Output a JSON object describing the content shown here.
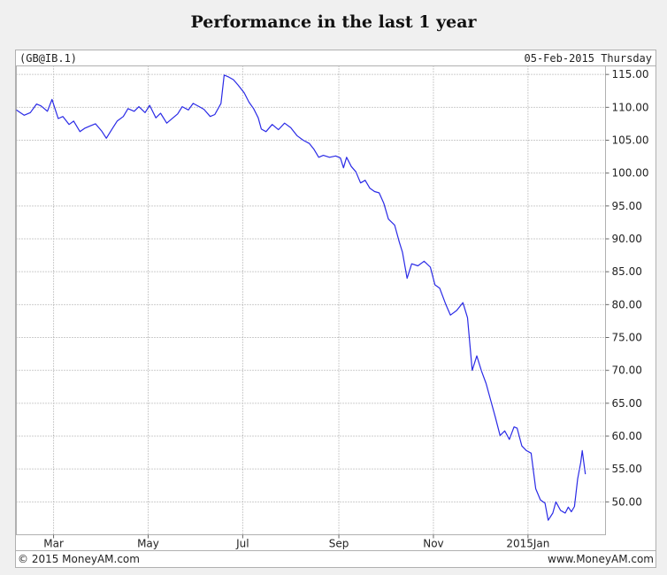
{
  "header": {
    "title": "Performance in the last 1 year"
  },
  "chart_data": {
    "type": "line",
    "title": "Performance in the last 1 year",
    "symbol": "(GB@IB.1)",
    "date_label": "05-Feb-2015 Thursday",
    "copyright": "© 2015 MoneyAM.com",
    "site": "www.MoneyAM.com",
    "xlabel": "",
    "ylabel": "",
    "ylim": [
      45,
      116.3
    ],
    "grid": true,
    "line_color": "#2a2ae6",
    "y_ticks": [
      "115.00",
      "110.00",
      "105.00",
      "100.00",
      "95.00",
      "90.00",
      "85.00",
      "80.00",
      "75.00",
      "70.00",
      "65.00",
      "60.00",
      "55.00",
      "50.00"
    ],
    "x_ticks": [
      {
        "label": "Mar",
        "date": "2014-03-01"
      },
      {
        "label": "May",
        "date": "2014-05-01"
      },
      {
        "label": "Jul",
        "date": "2014-07-01"
      },
      {
        "label": "Sep",
        "date": "2014-09-01"
      },
      {
        "label": "Nov",
        "date": "2014-11-01"
      },
      {
        "label": "2015Jan",
        "date": "2015-01-01"
      }
    ],
    "xlim": [
      "2014-02-05",
      "2015-02-20"
    ],
    "series": [
      {
        "points": [
          [
            "2014-02-05",
            109.6
          ],
          [
            "2014-02-10",
            108.8
          ],
          [
            "2014-02-14",
            109.2
          ],
          [
            "2014-02-18",
            110.5
          ],
          [
            "2014-02-21",
            110.2
          ],
          [
            "2014-02-25",
            109.4
          ],
          [
            "2014-02-28",
            111.2
          ],
          [
            "2014-03-04",
            108.3
          ],
          [
            "2014-03-07",
            108.6
          ],
          [
            "2014-03-11",
            107.4
          ],
          [
            "2014-03-14",
            107.9
          ],
          [
            "2014-03-18",
            106.3
          ],
          [
            "2014-03-21",
            106.8
          ],
          [
            "2014-03-25",
            107.2
          ],
          [
            "2014-03-28",
            107.5
          ],
          [
            "2014-04-01",
            106.4
          ],
          [
            "2014-04-04",
            105.3
          ],
          [
            "2014-04-08",
            106.8
          ],
          [
            "2014-04-11",
            107.9
          ],
          [
            "2014-04-15",
            108.6
          ],
          [
            "2014-04-18",
            109.8
          ],
          [
            "2014-04-22",
            109.4
          ],
          [
            "2014-04-25",
            110.1
          ],
          [
            "2014-04-29",
            109.2
          ],
          [
            "2014-05-02",
            110.3
          ],
          [
            "2014-05-06",
            108.4
          ],
          [
            "2014-05-09",
            109.1
          ],
          [
            "2014-05-13",
            107.6
          ],
          [
            "2014-05-16",
            108.2
          ],
          [
            "2014-05-20",
            109.0
          ],
          [
            "2014-05-23",
            110.1
          ],
          [
            "2014-05-27",
            109.6
          ],
          [
            "2014-05-30",
            110.6
          ],
          [
            "2014-06-03",
            110.1
          ],
          [
            "2014-06-06",
            109.7
          ],
          [
            "2014-06-10",
            108.6
          ],
          [
            "2014-06-13",
            108.9
          ],
          [
            "2014-06-17",
            110.6
          ],
          [
            "2014-06-19",
            114.9
          ],
          [
            "2014-06-22",
            114.6
          ],
          [
            "2014-06-25",
            114.2
          ],
          [
            "2014-06-28",
            113.4
          ],
          [
            "2014-07-02",
            112.2
          ],
          [
            "2014-07-05",
            110.8
          ],
          [
            "2014-07-08",
            109.8
          ],
          [
            "2014-07-11",
            108.4
          ],
          [
            "2014-07-13",
            106.7
          ],
          [
            "2014-07-16",
            106.3
          ],
          [
            "2014-07-20",
            107.4
          ],
          [
            "2014-07-24",
            106.6
          ],
          [
            "2014-07-28",
            107.6
          ],
          [
            "2014-08-01",
            106.9
          ],
          [
            "2014-08-05",
            105.7
          ],
          [
            "2014-08-09",
            105.0
          ],
          [
            "2014-08-13",
            104.5
          ],
          [
            "2014-08-16",
            103.6
          ],
          [
            "2014-08-19",
            102.4
          ],
          [
            "2014-08-22",
            102.7
          ],
          [
            "2014-08-26",
            102.4
          ],
          [
            "2014-08-30",
            102.6
          ],
          [
            "2014-09-02",
            102.3
          ],
          [
            "2014-09-04",
            100.8
          ],
          [
            "2014-09-06",
            102.4
          ],
          [
            "2014-09-09",
            101.0
          ],
          [
            "2014-09-12",
            100.2
          ],
          [
            "2014-09-15",
            98.5
          ],
          [
            "2014-09-18",
            98.9
          ],
          [
            "2014-09-21",
            97.7
          ],
          [
            "2014-09-24",
            97.2
          ],
          [
            "2014-09-27",
            97.0
          ],
          [
            "2014-09-30",
            95.4
          ],
          [
            "2014-10-03",
            93.0
          ],
          [
            "2014-10-07",
            92.1
          ],
          [
            "2014-10-10",
            89.5
          ],
          [
            "2014-10-12",
            88.0
          ],
          [
            "2014-10-15",
            84.0
          ],
          [
            "2014-10-18",
            86.2
          ],
          [
            "2014-10-22",
            85.9
          ],
          [
            "2014-10-26",
            86.6
          ],
          [
            "2014-10-30",
            85.7
          ],
          [
            "2014-11-02",
            83.0
          ],
          [
            "2014-11-05",
            82.5
          ],
          [
            "2014-11-09",
            80.0
          ],
          [
            "2014-11-12",
            78.4
          ],
          [
            "2014-11-16",
            79.1
          ],
          [
            "2014-11-20",
            80.3
          ],
          [
            "2014-11-23",
            78.0
          ],
          [
            "2014-11-26",
            70.0
          ],
          [
            "2014-11-29",
            72.2
          ],
          [
            "2014-12-02",
            69.9
          ],
          [
            "2014-12-05",
            68.0
          ],
          [
            "2014-12-08",
            65.4
          ],
          [
            "2014-12-11",
            62.8
          ],
          [
            "2014-12-14",
            60.1
          ],
          [
            "2014-12-17",
            60.8
          ],
          [
            "2014-12-20",
            59.5
          ],
          [
            "2014-12-23",
            61.4
          ],
          [
            "2014-12-25",
            61.2
          ],
          [
            "2014-12-28",
            58.5
          ],
          [
            "2014-12-31",
            57.8
          ],
          [
            "2015-01-03",
            57.4
          ],
          [
            "2015-01-06",
            52.0
          ],
          [
            "2015-01-09",
            50.3
          ],
          [
            "2015-01-12",
            49.8
          ],
          [
            "2015-01-14",
            47.2
          ],
          [
            "2015-01-17",
            48.3
          ],
          [
            "2015-01-19",
            50.0
          ],
          [
            "2015-01-22",
            48.7
          ],
          [
            "2015-01-25",
            48.3
          ],
          [
            "2015-01-27",
            49.2
          ],
          [
            "2015-01-29",
            48.5
          ],
          [
            "2015-01-31",
            49.3
          ],
          [
            "2015-02-02",
            53.5
          ],
          [
            "2015-02-04",
            56.0
          ],
          [
            "2015-02-05",
            57.8
          ],
          [
            "2015-02-07",
            54.2
          ]
        ]
      }
    ]
  }
}
